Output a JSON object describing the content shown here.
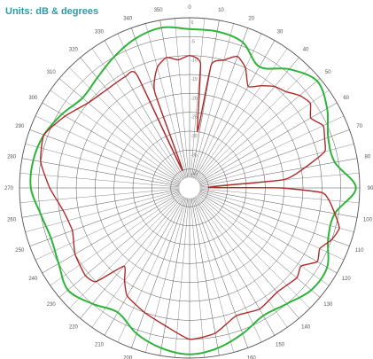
{
  "chart_data": {
    "type": "polar",
    "title": "Units: dB & degrees",
    "angle_unit": "degrees",
    "zero_direction": "top",
    "clockwise": true,
    "angle_ticks": [
      "0",
      "10",
      "20",
      "30",
      "40",
      "50",
      "60",
      "70",
      "80",
      "90",
      "100",
      "110",
      "120",
      "130",
      "140",
      "150",
      "160",
      "170",
      "180",
      "190",
      "200",
      "210",
      "220",
      "230",
      "240",
      "250",
      "260",
      "270",
      "280",
      "290",
      "300",
      "310",
      "320",
      "330",
      "340",
      "350"
    ],
    "angle_ticks_deg": [
      0,
      10,
      20,
      30,
      40,
      50,
      60,
      70,
      80,
      90,
      100,
      110,
      120,
      130,
      140,
      150,
      160,
      170,
      180,
      190,
      200,
      210,
      220,
      230,
      240,
      250,
      260,
      270,
      280,
      290,
      300,
      310,
      320,
      330,
      340,
      350
    ],
    "radial_ticks": [
      "0",
      "-5",
      "-10",
      "-15",
      "-20",
      "-25",
      "-30",
      "-35",
      "-40"
    ],
    "radial_range": [
      -45,
      0
    ],
    "radial_rings": 9,
    "grid": true,
    "colors": {
      "grid": "#555555",
      "series_1": "#2db43a",
      "series_2": "#b02a2a",
      "title": "#2a9aa8"
    },
    "series": [
      {
        "angles": [
          0,
          10,
          20,
          30,
          40,
          50,
          60,
          70,
          80,
          90,
          100,
          110,
          120,
          130,
          140,
          150,
          160,
          170,
          180,
          190,
          200,
          210,
          220,
          230,
          240,
          250,
          260,
          270,
          280,
          290,
          300,
          310,
          320,
          330,
          340,
          350
        ],
        "values": [
          -3,
          -3,
          -4,
          -8,
          -4,
          -1,
          -3,
          -6,
          -6,
          -1,
          -6,
          -6,
          -3,
          -3,
          -5,
          -6,
          -4,
          -2,
          -1,
          -2,
          -4,
          -7,
          -5,
          -3,
          -5,
          -6,
          -5,
          -3,
          -3,
          -4,
          -6,
          -8,
          -7,
          -5,
          -3,
          -2
        ]
      },
      {
        "angles": [
          0,
          5,
          8,
          10,
          15,
          20,
          25,
          30,
          35,
          40,
          45,
          50,
          55,
          60,
          65,
          70,
          75,
          80,
          85,
          88,
          90,
          92,
          95,
          100,
          105,
          110,
          115,
          120,
          125,
          130,
          140,
          150,
          160,
          170,
          180,
          190,
          200,
          210,
          215,
          220,
          225,
          230,
          240,
          250,
          260,
          270,
          280,
          290,
          300,
          310,
          320,
          330,
          335,
          338,
          340,
          345,
          350,
          355
        ],
        "values": [
          -10,
          -12,
          -30,
          -12,
          -10,
          -8,
          -10,
          -14,
          -12,
          -10,
          -9,
          -7,
          -6,
          -8,
          -6,
          -7,
          -8,
          -14,
          -20,
          -40,
          -21,
          -10,
          -8,
          -6,
          -4,
          -5,
          -7,
          -6,
          -9,
          -8,
          -9,
          -8,
          -9,
          -6,
          -5,
          -8,
          -10,
          -12,
          -15,
          -18,
          -10,
          -9,
          -10,
          -12,
          -11,
          -8,
          -5,
          -4,
          -7,
          -10,
          -11,
          -11,
          -12,
          -40,
          -18,
          -12,
          -10,
          -11
        ]
      }
    ]
  }
}
